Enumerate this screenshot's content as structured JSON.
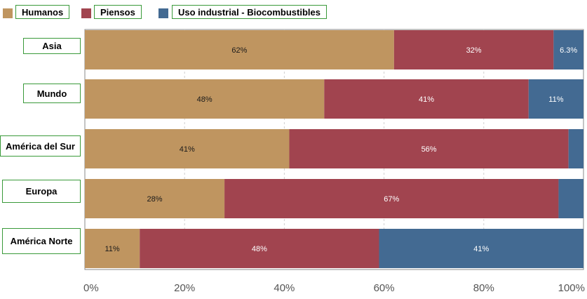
{
  "colors": {
    "humanos": "#bf9560",
    "piensos": "#a1444f",
    "industrial": "#436a92",
    "grid": "#d0d0d0",
    "axis_text": "#555555"
  },
  "legend": {
    "humanos": "Humanos",
    "piensos": "Piensos",
    "industrial": "Uso industrial - Biocombustibles"
  },
  "chart_data": {
    "type": "bar",
    "orientation": "horizontal",
    "stacked": true,
    "categories": [
      "Asia",
      "Mundo",
      "América del Sur",
      "Europa",
      "América Norte"
    ],
    "series": [
      {
        "name": "Humanos",
        "values": [
          62,
          48,
          41,
          28,
          11
        ],
        "labels": [
          "62%",
          "48%",
          "41%",
          "28%",
          "11%"
        ]
      },
      {
        "name": "Piensos",
        "values": [
          32,
          41,
          56,
          67,
          48
        ],
        "labels": [
          "32%",
          "41%",
          "56%",
          "67%",
          "48%"
        ]
      },
      {
        "name": "Uso industrial - Biocombustibles",
        "values": [
          6.3,
          11,
          3,
          5,
          41
        ],
        "labels": [
          "6.3%",
          "11%",
          "",
          "",
          "41%"
        ]
      }
    ],
    "xlim": [
      0,
      100
    ],
    "xticks": [
      "0%",
      "20%",
      "40%",
      "60%",
      "80%",
      "100%"
    ],
    "grid": true,
    "legend_position": "top"
  }
}
